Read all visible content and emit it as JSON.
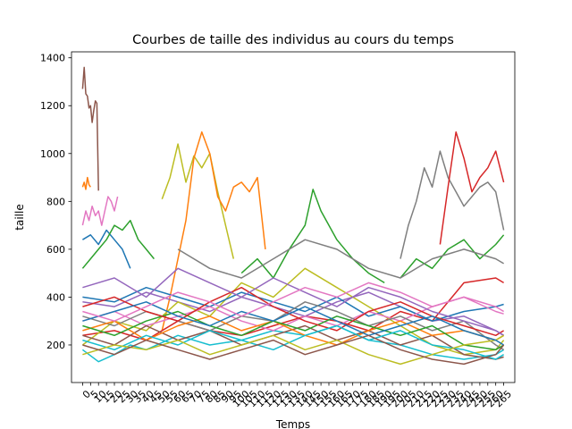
{
  "chart_data": {
    "type": "line",
    "title": "Courbes de taille des individus au cours du temps",
    "xlabel": "Temps",
    "ylabel": "taille",
    "xlim": [
      -7,
      272
    ],
    "ylim": [
      43,
      1425
    ],
    "grid": false,
    "legend": "none",
    "xticks": [
      0,
      5,
      10,
      15,
      20,
      25,
      30,
      35,
      40,
      45,
      50,
      55,
      60,
      65,
      70,
      75,
      80,
      85,
      90,
      95,
      100,
      105,
      110,
      115,
      120,
      125,
      130,
      135,
      140,
      145,
      150,
      155,
      160,
      165,
      170,
      175,
      180,
      185,
      190,
      195,
      200,
      205,
      210,
      215,
      220,
      225,
      230,
      235,
      240,
      245,
      250,
      255,
      260,
      265
    ],
    "xtick_labels": [
      "0",
      "5",
      "10",
      "15",
      "20",
      "25",
      "30",
      "35",
      "40",
      "45",
      "50",
      "55",
      "60",
      "65",
      "70",
      "75",
      "80",
      "85",
      "90",
      "95",
      "100",
      "105",
      "110",
      "115",
      "120",
      "125",
      "130",
      "135",
      "140",
      "145",
      "150",
      "155",
      "160",
      "165",
      "170",
      "175",
      "180",
      "185",
      "190",
      "195",
      "200",
      "205",
      "210",
      "215",
      "220",
      "225",
      "230",
      "235",
      "240",
      "245",
      "250",
      "255",
      "260",
      "265"
    ],
    "yticks": [
      200,
      400,
      600,
      800,
      1000,
      1200,
      1400
    ],
    "ytick_labels": [
      "200",
      "400",
      "600",
      "800",
      "1000",
      "1200",
      "1400"
    ],
    "colors": [
      "#1f77b4",
      "#ff7f0e",
      "#2ca02c",
      "#d62728",
      "#9467bd",
      "#8c564b",
      "#e377c2",
      "#7f7f7f",
      "#bcbd22",
      "#17becf"
    ],
    "series": [
      {
        "color": "#8c564b",
        "x": [
          0,
          1,
          2,
          3,
          4,
          5,
          6,
          7,
          8,
          9,
          10
        ],
        "y": [
          1270,
          1360,
          1250,
          1240,
          1190,
          1200,
          1130,
          1180,
          1220,
          1210,
          845
        ]
      },
      {
        "color": "#ff7f0e",
        "x": [
          0,
          1,
          2,
          3,
          4,
          5
        ],
        "y": [
          860,
          880,
          850,
          900,
          870,
          860
        ]
      },
      {
        "color": "#e377c2",
        "x": [
          0,
          2,
          4,
          6,
          8,
          10,
          12,
          14,
          16,
          18,
          20,
          22
        ],
        "y": [
          700,
          760,
          720,
          780,
          740,
          760,
          700,
          760,
          820,
          800,
          760,
          820
        ]
      },
      {
        "color": "#1f77b4",
        "x": [
          0,
          5,
          10,
          15,
          20,
          25,
          30
        ],
        "y": [
          640,
          660,
          620,
          680,
          640,
          600,
          520
        ]
      },
      {
        "color": "#2ca02c",
        "x": [
          0,
          5,
          10,
          15,
          20,
          25,
          30,
          35,
          40,
          45
        ],
        "y": [
          520,
          560,
          600,
          640,
          700,
          680,
          720,
          640,
          600,
          560
        ]
      },
      {
        "color": "#bcbd22",
        "x": [
          50,
          55,
          60,
          65,
          70,
          75,
          80,
          85,
          90,
          95
        ],
        "y": [
          810,
          900,
          1040,
          880,
          990,
          940,
          1000,
          840,
          700,
          560
        ]
      },
      {
        "color": "#ff7f0e",
        "x": [
          50,
          55,
          60,
          65,
          70,
          75,
          80,
          85,
          90,
          95,
          100,
          105,
          110,
          115
        ],
        "y": [
          260,
          400,
          560,
          720,
          980,
          1090,
          1000,
          820,
          760,
          860,
          880,
          840,
          900,
          600
        ]
      },
      {
        "color": "#2ca02c",
        "x": [
          100,
          110,
          120,
          130,
          140,
          145,
          150,
          160,
          170,
          180,
          190
        ],
        "y": [
          500,
          560,
          480,
          600,
          700,
          850,
          760,
          640,
          560,
          500,
          460
        ]
      },
      {
        "color": "#7f7f7f",
        "x": [
          200,
          205,
          210,
          215,
          220,
          225,
          230,
          235,
          240,
          245,
          250,
          255,
          260,
          265
        ],
        "y": [
          560,
          700,
          800,
          940,
          860,
          1010,
          900,
          840,
          780,
          820,
          860,
          880,
          840,
          680
        ]
      },
      {
        "color": "#d62728",
        "x": [
          225,
          230,
          235,
          240,
          245,
          250,
          255,
          260,
          265
        ],
        "y": [
          620,
          860,
          1090,
          980,
          840,
          900,
          940,
          1010,
          880
        ]
      },
      {
        "color": "#2ca02c",
        "x": [
          200,
          210,
          220,
          230,
          240,
          250,
          260,
          265
        ],
        "y": [
          480,
          560,
          520,
          600,
          640,
          560,
          620,
          660
        ]
      },
      {
        "color": "#d62728",
        "x": [
          0,
          20,
          40,
          60,
          80,
          100,
          120,
          140,
          160,
          180,
          200,
          220,
          240,
          260,
          265
        ],
        "y": [
          240,
          260,
          220,
          300,
          260,
          240,
          280,
          320,
          300,
          260,
          340,
          300,
          460,
          480,
          460
        ]
      },
      {
        "color": "#9467bd",
        "x": [
          0,
          20,
          40,
          60,
          80,
          100,
          120,
          140,
          160,
          180,
          200,
          220,
          240,
          260,
          265
        ],
        "y": [
          380,
          360,
          420,
          380,
          340,
          400,
          360,
          320,
          380,
          420,
          360,
          300,
          320,
          260,
          240
        ]
      },
      {
        "color": "#17becf",
        "x": [
          0,
          10,
          20,
          30,
          40,
          60,
          80,
          100,
          120,
          140,
          160,
          180,
          200,
          220,
          240,
          260,
          265
        ],
        "y": [
          180,
          130,
          160,
          200,
          180,
          240,
          200,
          220,
          260,
          240,
          280,
          220,
          200,
          160,
          140,
          160,
          180
        ]
      },
      {
        "color": "#bcbd22",
        "x": [
          0,
          20,
          40,
          60,
          80,
          100,
          120,
          140,
          160,
          180,
          200,
          220,
          240,
          260,
          265
        ],
        "y": [
          200,
          300,
          260,
          380,
          320,
          460,
          400,
          520,
          440,
          360,
          280,
          200,
          160,
          180,
          220
        ]
      },
      {
        "color": "#1f77b4",
        "x": [
          0,
          20,
          40,
          60,
          80,
          100,
          120,
          140,
          160,
          180,
          200,
          220,
          240,
          260,
          265
        ],
        "y": [
          400,
          380,
          440,
          400,
          360,
          420,
          380,
          340,
          400,
          320,
          360,
          300,
          340,
          360,
          370
        ]
      },
      {
        "color": "#e377c2",
        "x": [
          0,
          20,
          40,
          60,
          80,
          100,
          120,
          140,
          160,
          180,
          200,
          220,
          240,
          260,
          265
        ],
        "y": [
          300,
          340,
          280,
          320,
          360,
          300,
          260,
          320,
          280,
          340,
          300,
          360,
          400,
          360,
          340
        ]
      },
      {
        "color": "#8c564b",
        "x": [
          0,
          20,
          40,
          60,
          80,
          100,
          120,
          140,
          160,
          180,
          200,
          220,
          240,
          260,
          265
        ],
        "y": [
          240,
          200,
          280,
          220,
          260,
          200,
          240,
          280,
          220,
          260,
          200,
          240,
          160,
          140,
          150
        ]
      },
      {
        "color": "#7f7f7f",
        "x": [
          0,
          20,
          40,
          60,
          80,
          100,
          120,
          140,
          160,
          180,
          200,
          220,
          240,
          260,
          265
        ],
        "y": [
          320,
          280,
          340,
          300,
          260,
          320,
          300,
          380,
          340,
          280,
          320,
          260,
          300,
          200,
          180
        ]
      },
      {
        "color": "#ff7f0e",
        "x": [
          0,
          20,
          40,
          60,
          80,
          100,
          120,
          140,
          160,
          180,
          200,
          220,
          240,
          260,
          265
        ],
        "y": [
          260,
          300,
          220,
          280,
          320,
          260,
          300,
          240,
          200,
          260,
          300,
          240,
          260,
          220,
          240
        ]
      },
      {
        "color": "#2ca02c",
        "x": [
          0,
          20,
          40,
          60,
          80,
          100,
          120,
          140,
          160,
          180,
          200,
          220,
          240,
          260,
          265
        ],
        "y": [
          280,
          240,
          300,
          340,
          280,
          240,
          300,
          260,
          320,
          280,
          240,
          280,
          200,
          180,
          200
        ]
      },
      {
        "color": "#d62728",
        "x": [
          0,
          20,
          40,
          60,
          80,
          100,
          120,
          140,
          160,
          180,
          200,
          220,
          240,
          260,
          265
        ],
        "y": [
          360,
          400,
          340,
          300,
          380,
          440,
          360,
          300,
          260,
          340,
          380,
          320,
          280,
          240,
          260
        ]
      },
      {
        "color": "#9467bd",
        "x": [
          0,
          20,
          40,
          60,
          80,
          100,
          120,
          140,
          160,
          180,
          200,
          220,
          240,
          260,
          265
        ],
        "y": [
          440,
          480,
          400,
          520,
          460,
          400,
          480,
          420,
          360,
          440,
          400,
          340,
          300,
          260,
          240
        ]
      },
      {
        "color": "#17becf",
        "x": [
          0,
          20,
          40,
          60,
          80,
          100,
          120,
          140,
          160,
          180,
          200,
          220,
          240,
          260,
          265
        ],
        "y": [
          220,
          180,
          240,
          200,
          260,
          220,
          180,
          240,
          280,
          220,
          260,
          200,
          180,
          140,
          160
        ]
      },
      {
        "color": "#bcbd22",
        "x": [
          0,
          20,
          40,
          60,
          80,
          100,
          120,
          140,
          160,
          180,
          200,
          220,
          240,
          260,
          265
        ],
        "y": [
          160,
          200,
          180,
          220,
          160,
          200,
          240,
          180,
          220,
          160,
          120,
          160,
          200,
          220,
          240
        ]
      },
      {
        "color": "#1f77b4",
        "x": [
          0,
          20,
          40,
          60,
          80,
          100,
          120,
          140,
          160,
          180,
          200,
          220,
          240,
          260,
          265
        ],
        "y": [
          300,
          340,
          380,
          320,
          280,
          340,
          300,
          360,
          300,
          240,
          280,
          320,
          260,
          220,
          200
        ]
      },
      {
        "color": "#e377c2",
        "x": [
          0,
          20,
          40,
          60,
          80,
          100,
          120,
          140,
          160,
          180,
          200,
          220,
          240,
          260,
          265
        ],
        "y": [
          340,
          300,
          360,
          420,
          380,
          320,
          380,
          440,
          400,
          460,
          420,
          360,
          400,
          340,
          330
        ]
      },
      {
        "color": "#8c564b",
        "x": [
          0,
          20,
          40,
          60,
          80,
          100,
          120,
          140,
          160,
          180,
          200,
          220,
          240,
          260,
          265
        ],
        "y": [
          200,
          160,
          220,
          180,
          140,
          180,
          220,
          160,
          200,
          240,
          180,
          140,
          120,
          160,
          200
        ]
      },
      {
        "color": "#7f7f7f",
        "x": [
          60,
          80,
          100,
          120,
          140,
          160,
          180,
          200,
          220,
          240,
          260,
          265
        ],
        "y": [
          600,
          520,
          480,
          560,
          640,
          600,
          520,
          480,
          560,
          600,
          560,
          540
        ]
      }
    ]
  }
}
